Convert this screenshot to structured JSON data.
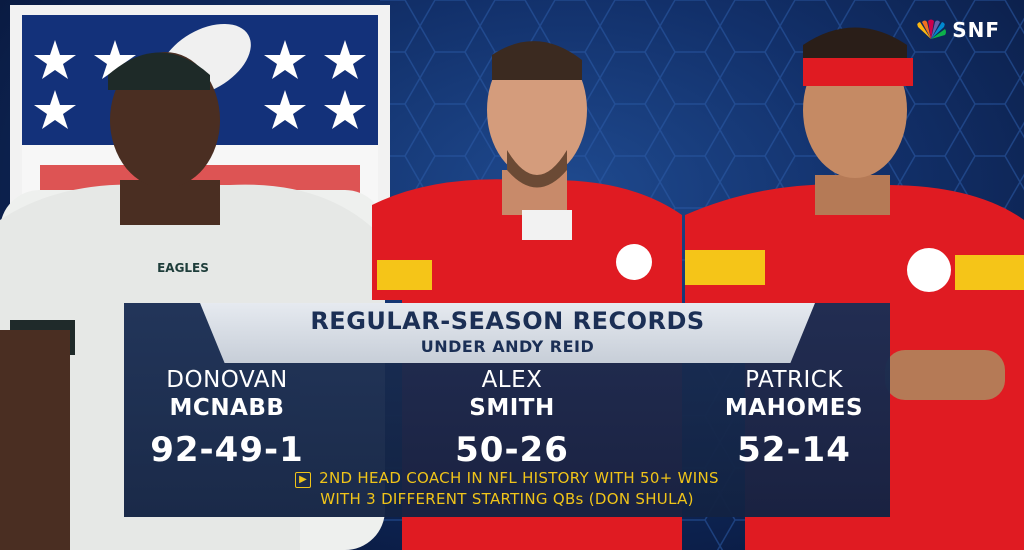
{
  "network": {
    "logo_text": "SNF"
  },
  "graphic": {
    "title": "REGULAR-SEASON RECORDS",
    "subtitle": "UNDER ANDY REID"
  },
  "players": [
    {
      "first": "DONOVAN",
      "last": "MCNABB",
      "record": "92-49-1",
      "jersey_text": "EAGLES"
    },
    {
      "first": "ALEX",
      "last": "SMITH",
      "record": "50-26"
    },
    {
      "first": "PATRICK",
      "last": "MAHOMES",
      "record": "52-14"
    }
  ],
  "note": {
    "icon": "play-arrow-icon",
    "line1": "2ND HEAD COACH IN NFL HISTORY WITH 50+ WINS",
    "line2": "WITH 3 DIFFERENT STARTING QBs (DON SHULA)"
  },
  "colors": {
    "panel": "#1a2e54",
    "title_bar": "#dde2ea",
    "accent": "#f0c419",
    "chiefs_red": "#e01b22",
    "eagles_white": "#eef0ee"
  }
}
